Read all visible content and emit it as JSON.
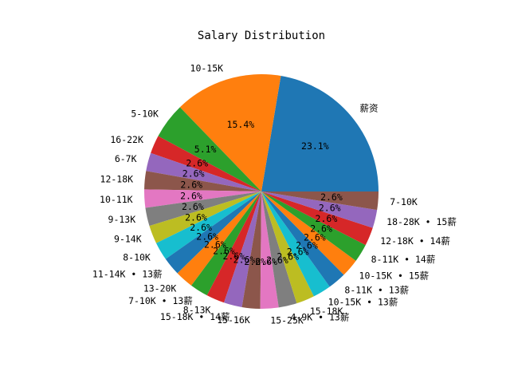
{
  "chart_data": {
    "type": "pie",
    "title": "Salary Distribution",
    "start_angle_deg": 0,
    "direction": "counterclockwise",
    "slices": [
      {
        "label": "薪资",
        "value": 23.1,
        "pct_label": "23.1%",
        "color": "#1f77b4"
      },
      {
        "label": "10-15K",
        "value": 15.4,
        "pct_label": "15.4%",
        "color": "#ff7f0e"
      },
      {
        "label": "5-10K",
        "value": 5.1,
        "pct_label": "5.1%",
        "color": "#2ca02c"
      },
      {
        "label": "16-22K",
        "value": 2.6,
        "pct_label": "2.6%",
        "color": "#d62728"
      },
      {
        "label": "6-7K",
        "value": 2.6,
        "pct_label": "2.6%",
        "color": "#9467bd"
      },
      {
        "label": "12-18K",
        "value": 2.6,
        "pct_label": "2.6%",
        "color": "#8c564b"
      },
      {
        "label": "10-11K",
        "value": 2.6,
        "pct_label": "2.6%",
        "color": "#e377c2"
      },
      {
        "label": "9-13K",
        "value": 2.6,
        "pct_label": "2.6%",
        "color": "#7f7f7f"
      },
      {
        "label": "9-14K",
        "value": 2.6,
        "pct_label": "2.6%",
        "color": "#bcbd22"
      },
      {
        "label": "8-10K",
        "value": 2.6,
        "pct_label": "2.6%",
        "color": "#17becf"
      },
      {
        "label": "11-14K • 13薪",
        "value": 2.6,
        "pct_label": "2.6%",
        "color": "#1f77b4"
      },
      {
        "label": "13-20K",
        "value": 2.6,
        "pct_label": "2.6%",
        "color": "#ff7f0e"
      },
      {
        "label": "7-10K • 13薪",
        "value": 2.6,
        "pct_label": "2.6%",
        "color": "#2ca02c"
      },
      {
        "label": "8-13K",
        "value": 2.6,
        "pct_label": "2.6%",
        "color": "#d62728"
      },
      {
        "label": "15-18K • 14薪",
        "value": 2.6,
        "pct_label": "2.6%",
        "color": "#9467bd"
      },
      {
        "label": "15-16K",
        "value": 2.6,
        "pct_label": "2.6%",
        "color": "#8c564b"
      },
      {
        "label": "15-25K",
        "value": 2.6,
        "pct_label": "2.6%",
        "color": "#e377c2"
      },
      {
        "label": "4-9K • 13薪",
        "value": 2.6,
        "pct_label": "2.6%",
        "color": "#7f7f7f"
      },
      {
        "label": "15-18K",
        "value": 2.6,
        "pct_label": "2.6%",
        "color": "#bcbd22"
      },
      {
        "label": "10-15K • 13薪",
        "value": 2.6,
        "pct_label": "2.6%",
        "color": "#17becf"
      },
      {
        "label": "8-11K • 13薪",
        "value": 2.6,
        "pct_label": "2.6%",
        "color": "#1f77b4"
      },
      {
        "label": "10-15K • 15薪",
        "value": 2.6,
        "pct_label": "2.6%",
        "color": "#ff7f0e"
      },
      {
        "label": "8-11K • 14薪",
        "value": 2.6,
        "pct_label": "2.6%",
        "color": "#2ca02c"
      },
      {
        "label": "12-18K • 14薪",
        "value": 2.6,
        "pct_label": "2.6%",
        "color": "#d62728"
      },
      {
        "label": "18-28K • 15薪",
        "value": 2.6,
        "pct_label": "2.6%",
        "color": "#9467bd"
      },
      {
        "label": "7-10K",
        "value": 2.6,
        "pct_label": "2.6%",
        "color": "#8c564b"
      }
    ]
  }
}
